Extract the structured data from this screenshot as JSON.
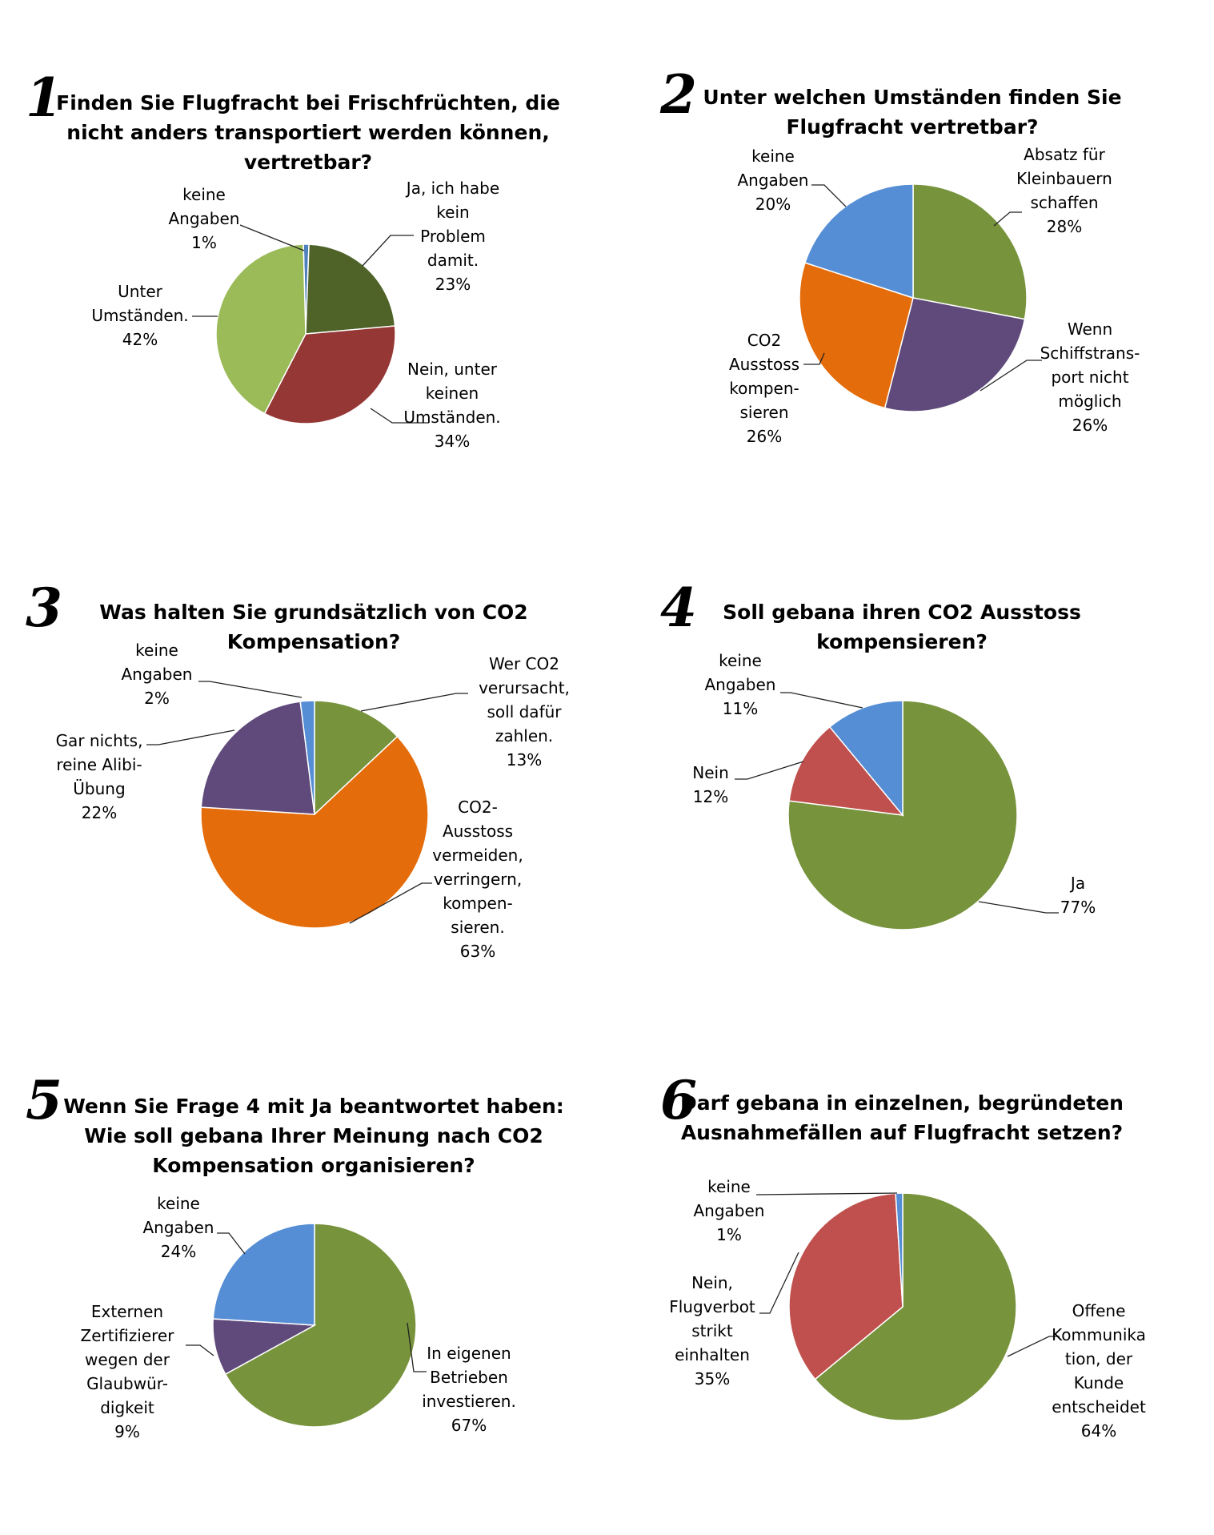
{
  "chart_data": [
    {
      "type": "pie",
      "number": "1",
      "title": [
        "Finden Sie Flugfracht bei Frischfrüchten, die",
        "nicht anders transportiert werden können,",
        "vertretbar?"
      ],
      "series": [
        {
          "name": "keine Angaben",
          "label": [
            "keine",
            "Angaben",
            "1%"
          ],
          "value": 1,
          "color": "#4f81bd"
        },
        {
          "name": "Ja, ich habe kein Problem damit.",
          "label": [
            "Ja, ich habe",
            "kein",
            "Problem",
            "damit.",
            "23%"
          ],
          "value": 23,
          "color": "#4f6228"
        },
        {
          "name": "Nein, unter keinen Umständen.",
          "label": [
            "Nein, unter",
            "keinen",
            "Umständen.",
            "34%"
          ],
          "value": 34,
          "color": "#953735"
        },
        {
          "name": "Unter Umständen.",
          "label": [
            "Unter",
            "Umständen.",
            "42%"
          ],
          "value": 42,
          "color": "#9bbb59"
        }
      ]
    },
    {
      "type": "pie",
      "number": "2",
      "title": [
        "Unter welchen Umständen finden Sie",
        "Flugfracht vertretbar?"
      ],
      "series": [
        {
          "name": "Absatz für Kleinbauern schaffen",
          "label": [
            "Absatz für",
            "Kleinbauern",
            "schaffen",
            "28%"
          ],
          "value": 28,
          "color": "#77933c"
        },
        {
          "name": "Wenn Schiffstransport nicht möglich",
          "label": [
            "Wenn",
            "Schiffstrans-",
            "port nicht",
            "möglich",
            "26%"
          ],
          "value": 26,
          "color": "#604a7b"
        },
        {
          "name": "CO2 Ausstoss kompensieren",
          "label": [
            "CO2",
            "Ausstoss",
            "kompen-",
            "sieren",
            "26%"
          ],
          "value": 26,
          "color": "#e46c0a"
        },
        {
          "name": "keine Angaben",
          "label": [
            "keine",
            "Angaben",
            "20%"
          ],
          "value": 20,
          "color": "#558ed5"
        }
      ]
    },
    {
      "type": "pie",
      "number": "3",
      "title": [
        "Was halten Sie grundsätzlich von CO2",
        "Kompensation?"
      ],
      "series": [
        {
          "name": "Wer CO2 verursacht, soll dafür zahlen.",
          "label": [
            "Wer CO2",
            "verursacht,",
            "soll dafür",
            "zahlen.",
            "13%"
          ],
          "value": 13,
          "color": "#77933c"
        },
        {
          "name": "CO2-Ausstoss vermeiden, verringern, kompensieren.",
          "label": [
            "CO2-",
            "Ausstoss",
            "vermeiden,",
            "verringern,",
            "kompen-",
            "sieren.",
            "63%"
          ],
          "value": 63,
          "color": "#e46c0a"
        },
        {
          "name": "Gar nichts, reine Alibi-Übung",
          "label": [
            "Gar nichts,",
            "reine Alibi-",
            "Übung",
            "22%"
          ],
          "value": 22,
          "color": "#604a7b"
        },
        {
          "name": "keine Angaben",
          "label": [
            "keine",
            "Angaben",
            "2%"
          ],
          "value": 2,
          "color": "#558ed5"
        }
      ]
    },
    {
      "type": "pie",
      "number": "4",
      "title": [
        "Soll gebana ihren CO2 Ausstoss",
        "kompensieren?"
      ],
      "series": [
        {
          "name": "Ja",
          "label": [
            "Ja",
            "77%"
          ],
          "value": 77,
          "color": "#77933c"
        },
        {
          "name": "Nein",
          "label": [
            "Nein",
            "12%"
          ],
          "value": 12,
          "color": "#c0504d"
        },
        {
          "name": "keine Angaben",
          "label": [
            "keine",
            "Angaben",
            "11%"
          ],
          "value": 11,
          "color": "#558ed5"
        }
      ]
    },
    {
      "type": "pie",
      "number": "5",
      "title": [
        "Wenn Sie Frage 4 mit Ja beantwortet haben:",
        "Wie soll gebana Ihrer Meinung nach CO2",
        "Kompensation organisieren?"
      ],
      "series": [
        {
          "name": "In eigenen Betrieben investieren.",
          "label": [
            "In eigenen",
            "Betrieben",
            "investieren.",
            "67%"
          ],
          "value": 67,
          "color": "#77933c"
        },
        {
          "name": "Externen Zertifizierer wegen der Glaubwürdigkeit",
          "label": [
            "Externen",
            "Zertifizierer",
            "wegen der",
            "Glaubwür-",
            "digkeit",
            "9%"
          ],
          "value": 9,
          "color": "#604a7b"
        },
        {
          "name": "keine Angaben",
          "label": [
            "keine",
            "Angaben",
            "24%"
          ],
          "value": 24,
          "color": "#558ed5"
        }
      ]
    },
    {
      "type": "pie",
      "number": "6",
      "title": [
        "Darf gebana in einzelnen, begründeten",
        "Ausnahmefällen auf Flugfracht setzen?"
      ],
      "series": [
        {
          "name": "Offene Kommunikation, der Kunde entscheidet",
          "label": [
            "Offene",
            "Kommunika",
            "tion, der",
            "Kunde",
            "entscheidet",
            "64%"
          ],
          "value": 64,
          "color": "#77933c"
        },
        {
          "name": "Nein, Flugverbot strikt einhalten",
          "label": [
            "Nein,",
            "Flugverbot",
            "strikt",
            "einhalten",
            "35%"
          ],
          "value": 35,
          "color": "#c0504d"
        },
        {
          "name": "keine Angaben",
          "label": [
            "keine",
            "Angaben",
            "1%"
          ],
          "value": 1,
          "color": "#558ed5"
        }
      ]
    }
  ]
}
